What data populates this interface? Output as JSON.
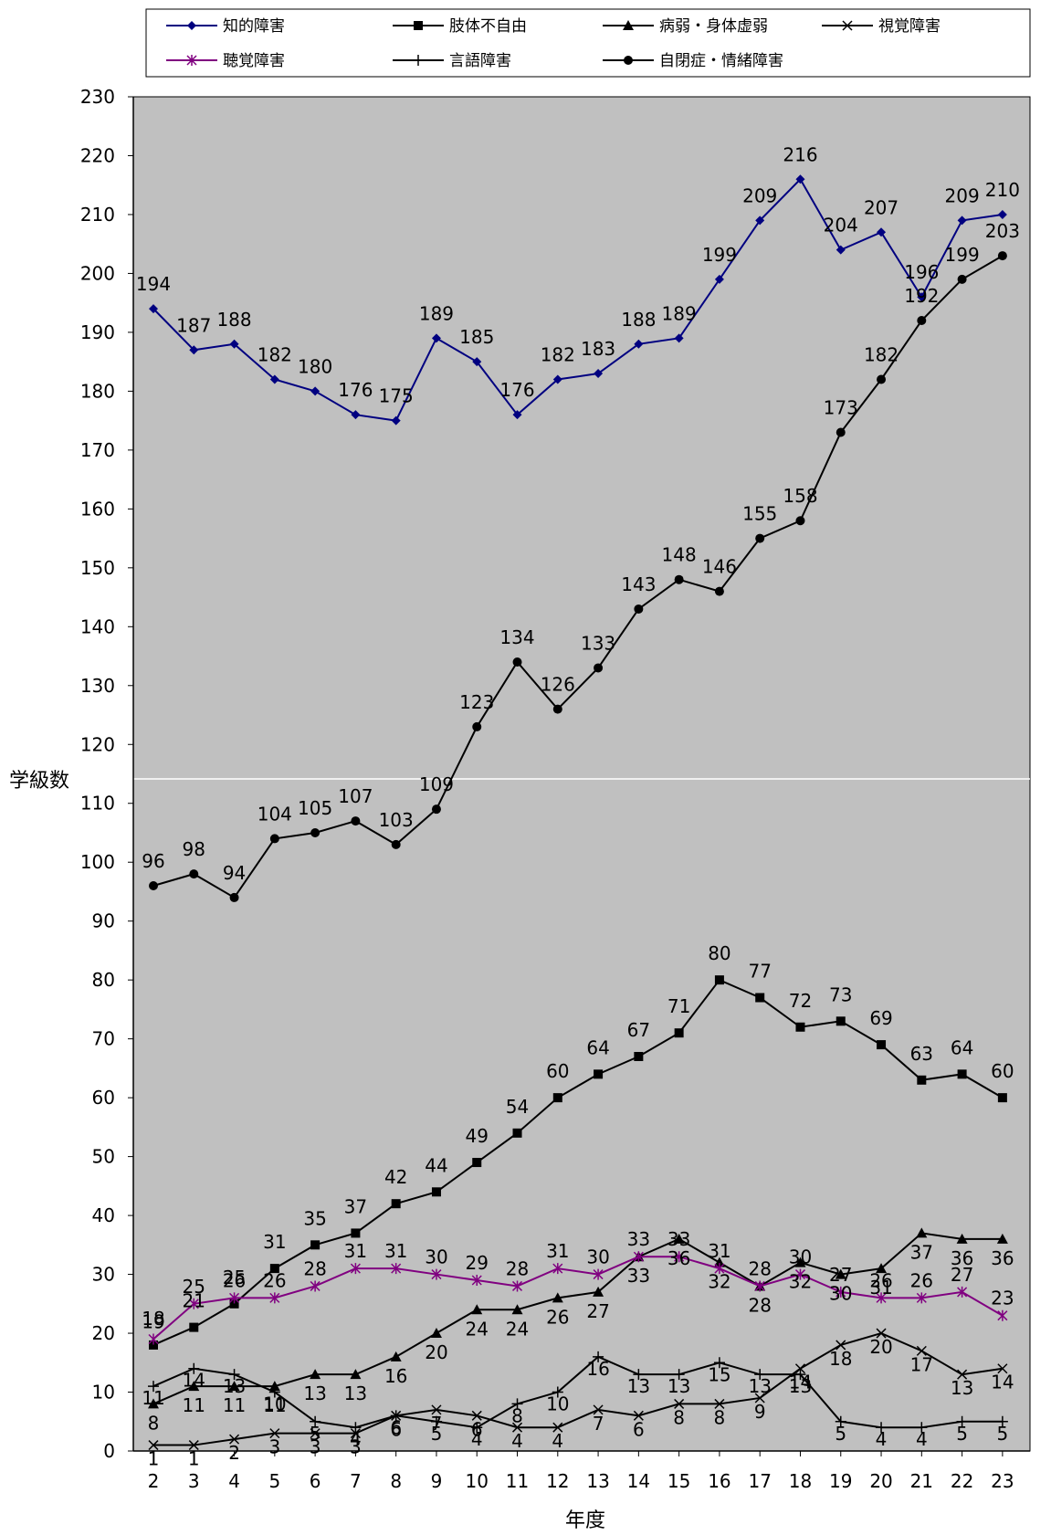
{
  "chart_data": {
    "type": "line",
    "xlabel": "年度",
    "ylabel": "学級数",
    "ylim": [
      0,
      230
    ],
    "y_ticks": [
      0,
      10,
      20,
      30,
      40,
      50,
      60,
      70,
      80,
      90,
      100,
      110,
      120,
      130,
      140,
      150,
      160,
      170,
      180,
      190,
      200,
      210,
      220,
      230
    ],
    "categories": [
      "2",
      "3",
      "4",
      "5",
      "6",
      "7",
      "8",
      "9",
      "10",
      "11",
      "12",
      "13",
      "14",
      "15",
      "16",
      "17",
      "18",
      "19",
      "20",
      "21",
      "22",
      "23"
    ],
    "grid": false,
    "legend_position": "top",
    "plot_background": "#c0c0c0",
    "series": [
      {
        "name": "知的障害",
        "color": "#000080",
        "marker": "diamond",
        "values": [
          194,
          187,
          188,
          182,
          180,
          176,
          175,
          189,
          185,
          176,
          182,
          183,
          188,
          189,
          199,
          209,
          216,
          204,
          207,
          196,
          209,
          210
        ]
      },
      {
        "name": "肢体不自由",
        "color": "#000000",
        "marker": "square",
        "values": [
          18,
          21,
          25,
          31,
          35,
          37,
          42,
          44,
          49,
          54,
          60,
          64,
          67,
          71,
          80,
          77,
          72,
          73,
          69,
          63,
          64,
          60
        ]
      },
      {
        "name": "病弱・身体虚弱",
        "color": "#000000",
        "marker": "triangle",
        "values": [
          8,
          11,
          11,
          11,
          13,
          13,
          16,
          20,
          24,
          24,
          26,
          27,
          33,
          36,
          32,
          28,
          32,
          30,
          31,
          37,
          36,
          36
        ]
      },
      {
        "name": "視覚障害",
        "color": "#000000",
        "marker": "x",
        "values": [
          1,
          1,
          2,
          3,
          3,
          3,
          6,
          7,
          6,
          4,
          4,
          7,
          6,
          8,
          8,
          9,
          14,
          18,
          20,
          17,
          13,
          14
        ]
      },
      {
        "name": "聴覚障害",
        "color": "#800080",
        "marker": "star",
        "values": [
          19,
          25,
          26,
          26,
          28,
          31,
          31,
          30,
          29,
          28,
          31,
          30,
          33,
          33,
          31,
          28,
          30,
          27,
          26,
          26,
          27,
          23
        ]
      },
      {
        "name": "言語障害",
        "color": "#000000",
        "marker": "plus",
        "values": [
          11,
          14,
          13,
          10,
          5,
          4,
          6,
          5,
          4,
          8,
          10,
          16,
          13,
          13,
          15,
          13,
          13,
          5,
          4,
          4,
          5,
          5
        ]
      },
      {
        "name": "自閉症・情緒障害",
        "color": "#000000",
        "marker": "circle",
        "values": [
          96,
          98,
          94,
          104,
          105,
          107,
          103,
          109,
          123,
          134,
          126,
          133,
          143,
          148,
          146,
          155,
          158,
          173,
          182,
          192,
          199,
          203
        ]
      }
    ],
    "data_labels": [
      [
        "194",
        "187",
        "188",
        "182",
        "180",
        "176",
        "175",
        "189",
        "185",
        "176",
        "182",
        "183",
        "188",
        "189",
        "199",
        "209",
        "216",
        "204",
        "207",
        "196",
        "209",
        "210"
      ],
      [
        "18",
        "21",
        "25",
        "31",
        "35",
        "37",
        "42",
        "44",
        "49",
        "54",
        "60",
        "64",
        "67",
        "71",
        "80",
        "77",
        "72",
        "73",
        "69",
        "63",
        "64",
        "60"
      ],
      [
        "8",
        "11",
        "11",
        "11",
        "13",
        "13",
        "16",
        "20",
        "24",
        "24",
        "26",
        "27",
        "33",
        "36",
        "32",
        "28",
        "32",
        "30",
        "31",
        "37",
        "36",
        "36"
      ],
      [
        "1",
        "1",
        "2",
        "3",
        "3",
        "3",
        "6",
        "7",
        "6",
        "4",
        "4",
        "7",
        "6",
        "8",
        "8",
        "9",
        "14",
        "18",
        "20",
        "17",
        "13",
        "14"
      ],
      [
        "19",
        "25",
        "26",
        "26",
        "28",
        "31",
        "31",
        "30",
        "29",
        "28",
        "31",
        "30",
        "33",
        "33",
        "31",
        "28",
        "30",
        "27",
        "26",
        "26",
        "27",
        "23"
      ],
      [
        "11",
        "14",
        "13",
        "10",
        "5",
        "4",
        "6",
        "5",
        "4",
        "8",
        "10",
        "16",
        "13",
        "13",
        "15",
        "13",
        "13",
        "5",
        "4",
        "4",
        "5",
        "5"
      ],
      [
        "96",
        "98",
        "94",
        "104",
        "105",
        "107",
        "103",
        "109",
        "123",
        "134",
        "126",
        "133",
        "143",
        "148",
        "146",
        "155",
        "158",
        "173",
        "182",
        "192",
        "199",
        "203"
      ]
    ]
  }
}
